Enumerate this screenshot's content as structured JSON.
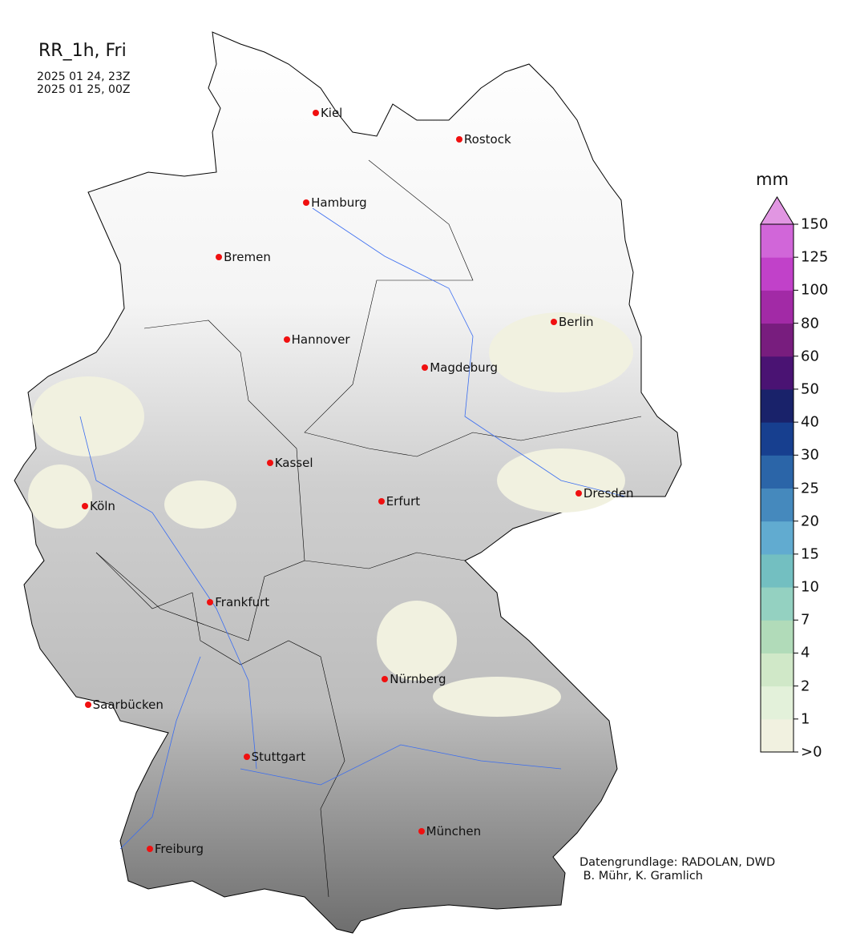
{
  "title": "RR_1h, Fri",
  "time_lines": [
    "2025 01 24, 23Z",
    "2025 01 25, 00Z"
  ],
  "credit": "Datengrundlage: RADOLAN, DWD\n B. Mühr, K. Gramlich",
  "colorbar": {
    "unit": "mm",
    "ticks": [
      ">0",
      "1",
      "2",
      "4",
      "7",
      "10",
      "15",
      "20",
      "25",
      "30",
      "40",
      "50",
      "60",
      "80",
      "100",
      "125",
      "150"
    ],
    "colors": [
      "#f1f1e0",
      "#e3f1da",
      "#d0e8c8",
      "#b1dbb9",
      "#94d1c1",
      "#73bfc1",
      "#61abd0",
      "#4589bd",
      "#2b65a8",
      "#173f8f",
      "#19226a",
      "#4a1373",
      "#781d7e",
      "#a22aa6",
      "#c141c9",
      "#d166d9"
    ],
    "extend_color": "#e196e2"
  },
  "cities": [
    {
      "name": "Kiel",
      "lon": 10.13,
      "lat": 54.32
    },
    {
      "name": "Rostock",
      "lon": 12.1,
      "lat": 54.09
    },
    {
      "name": "Hamburg",
      "lon": 10.0,
      "lat": 53.55
    },
    {
      "name": "Bremen",
      "lon": 8.8,
      "lat": 53.08
    },
    {
      "name": "Berlin",
      "lon": 13.4,
      "lat": 52.52
    },
    {
      "name": "Hannover",
      "lon": 9.73,
      "lat": 52.37
    },
    {
      "name": "Magdeburg",
      "lon": 11.63,
      "lat": 52.13
    },
    {
      "name": "Kassel",
      "lon": 9.5,
      "lat": 51.31
    },
    {
      "name": "Köln",
      "lon": 6.96,
      "lat": 50.94
    },
    {
      "name": "Erfurt",
      "lon": 11.03,
      "lat": 50.98
    },
    {
      "name": "Dresden",
      "lon": 13.74,
      "lat": 51.05
    },
    {
      "name": "Frankfurt",
      "lon": 8.68,
      "lat": 50.11
    },
    {
      "name": "Nürnberg",
      "lon": 11.08,
      "lat": 49.45
    },
    {
      "name": "Saarbücken",
      "lon": 7.0,
      "lat": 49.23
    },
    {
      "name": "Stuttgart",
      "lon": 9.18,
      "lat": 48.78
    },
    {
      "name": "München",
      "lon": 11.58,
      "lat": 48.14
    },
    {
      "name": "Freiburg",
      "lon": 7.85,
      "lat": 47.99
    }
  ]
}
